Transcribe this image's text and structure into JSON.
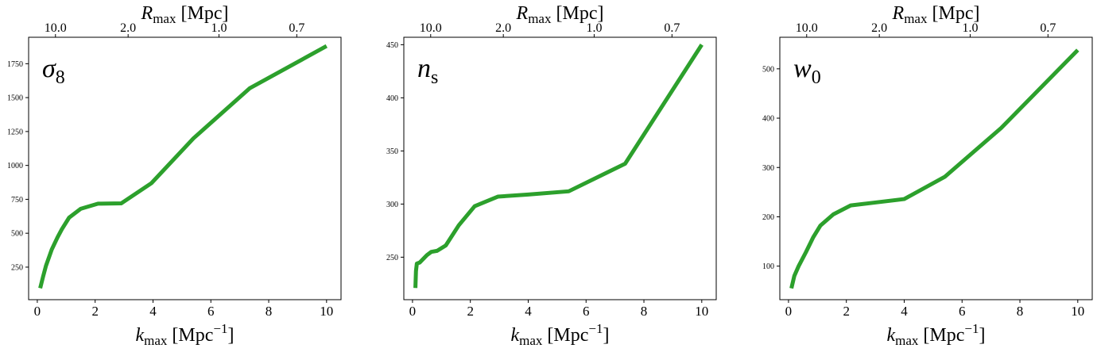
{
  "chart_data": [
    {
      "type": "line",
      "symbol": {
        "main": "σ",
        "sub": "8"
      },
      "xlabel": {
        "main": "k",
        "sub": "max",
        "unit": "[Mpc",
        "sup": "−1",
        "close": "]"
      },
      "top_xlabel": {
        "main": "R",
        "sub": "max",
        "unit": "[Mpc]"
      },
      "xlim": [
        -0.3,
        10.5
      ],
      "ylim": [
        10,
        1945
      ],
      "x_ticks": [
        "0",
        "2",
        "4",
        "6",
        "8",
        "10"
      ],
      "x_tick_values": [
        0,
        2,
        4,
        6,
        8,
        10
      ],
      "y_ticks": [
        "250",
        "500",
        "750",
        "1000",
        "1250",
        "1500",
        "1750"
      ],
      "y_tick_values": [
        250,
        500,
        750,
        1000,
        1250,
        1500,
        1750
      ],
      "top_ticks": [
        "10.0",
        "2.0",
        "1.0",
        "0.7"
      ],
      "top_tick_positions": [
        0.628,
        3.14,
        6.28,
        8.97
      ],
      "color": "#2ca02c",
      "x": [
        0.1,
        0.2,
        0.3,
        0.5,
        0.7,
        0.85,
        1.1,
        1.5,
        2.1,
        2.9,
        3.95,
        5.4,
        7.35,
        10.0
      ],
      "y": [
        95,
        180,
        260,
        380,
        470,
        530,
        615,
        680,
        718,
        720,
        870,
        1200,
        1570,
        1880
      ]
    },
    {
      "type": "line",
      "symbol": {
        "main": "n",
        "sub": "s"
      },
      "xlabel": {
        "main": "k",
        "sub": "max",
        "unit": "[Mpc",
        "sup": "−1",
        "close": "]"
      },
      "top_xlabel": {
        "main": "R",
        "sub": "max",
        "unit": "[Mpc]"
      },
      "xlim": [
        -0.3,
        10.5
      ],
      "ylim": [
        210,
        457
      ],
      "x_ticks": [
        "0",
        "2",
        "4",
        "6",
        "8",
        "10"
      ],
      "x_tick_values": [
        0,
        2,
        4,
        6,
        8,
        10
      ],
      "y_ticks": [
        "250",
        "300",
        "350",
        "400",
        "450"
      ],
      "y_tick_values": [
        250,
        300,
        350,
        400,
        450
      ],
      "top_ticks": [
        "10.0",
        "2.0",
        "1.0",
        "0.7"
      ],
      "top_tick_positions": [
        0.628,
        3.14,
        6.28,
        8.97
      ],
      "color": "#2ca02c",
      "x": [
        0.1,
        0.12,
        0.15,
        0.25,
        0.5,
        0.65,
        0.85,
        1.15,
        1.6,
        2.15,
        2.95,
        4.0,
        5.4,
        7.35,
        10.0
      ],
      "y": [
        221,
        237,
        244,
        245,
        252,
        255,
        256,
        261,
        280,
        298,
        307,
        309,
        312,
        338,
        450
      ]
    },
    {
      "type": "line",
      "symbol": {
        "main": "w",
        "sub": "0"
      },
      "xlabel": {
        "main": "k",
        "sub": "max",
        "unit": "[Mpc",
        "sup": "−1",
        "close": "]"
      },
      "top_xlabel": {
        "main": "R",
        "sub": "max",
        "unit": "[Mpc]"
      },
      "xlim": [
        -0.3,
        10.5
      ],
      "ylim": [
        32,
        564
      ],
      "x_ticks": [
        "0",
        "2",
        "4",
        "6",
        "8",
        "10"
      ],
      "x_tick_values": [
        0,
        2,
        4,
        6,
        8,
        10
      ],
      "y_ticks": [
        "100",
        "200",
        "300",
        "400",
        "500"
      ],
      "y_tick_values": [
        100,
        200,
        300,
        400,
        500
      ],
      "top_ticks": [
        "10.0",
        "2.0",
        "1.0",
        "0.7"
      ],
      "top_tick_positions": [
        0.628,
        3.14,
        6.28,
        8.97
      ],
      "color": "#2ca02c",
      "x": [
        0.1,
        0.2,
        0.35,
        0.6,
        0.85,
        1.1,
        1.55,
        2.15,
        3.0,
        4.0,
        5.4,
        7.35,
        10.0
      ],
      "y": [
        55,
        80,
        100,
        128,
        158,
        182,
        205,
        223,
        229,
        236,
        281,
        380,
        538
      ]
    }
  ]
}
